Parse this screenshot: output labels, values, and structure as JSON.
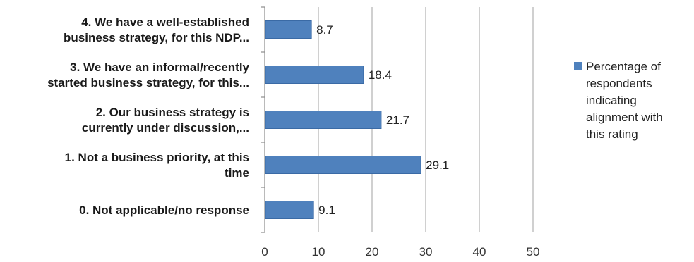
{
  "chart_data": {
    "type": "bar",
    "orientation": "horizontal",
    "categories": [
      [
        "0. Not applicable/no response"
      ],
      [
        "1. Not a business priority, at this",
        "time"
      ],
      [
        "2. Our business strategy is",
        "currently under discussion,..."
      ],
      [
        "3. We have an informal/recently",
        "started business strategy, for this..."
      ],
      [
        "4. We have a well-established",
        "business strategy, for this NDP..."
      ]
    ],
    "series": [
      {
        "name": "Percentage of respondents indicating alignment with this rating",
        "values": [
          9.1,
          29.1,
          21.7,
          18.4,
          8.7
        ],
        "data_labels": [
          "9.1",
          "29.1",
          "21.7",
          "18.4",
          "8.7"
        ]
      }
    ],
    "xlim": [
      0,
      50
    ],
    "x_ticks": [
      "0",
      "10",
      "20",
      "30",
      "40",
      "50"
    ],
    "grid": true,
    "legend": {
      "placement": "right",
      "lines": [
        "Percentage of",
        "respondents",
        "indicating",
        "alignment with",
        "this rating"
      ]
    },
    "colors": {
      "bar": "#4f81bd",
      "bar_edge": "#3a6aa5",
      "grid": "#b0b0b0",
      "axis": "#8c8c8c"
    }
  }
}
